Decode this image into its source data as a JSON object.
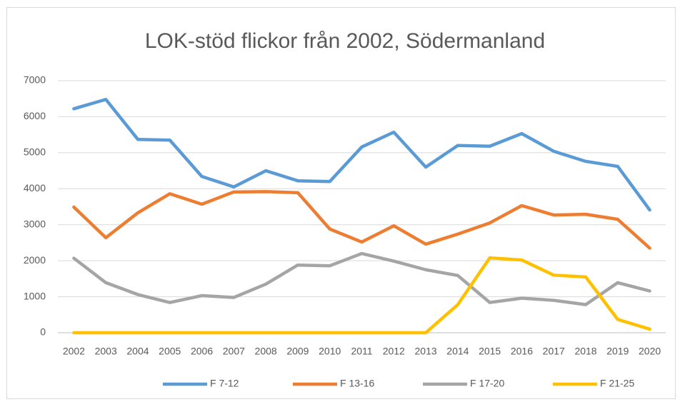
{
  "chart_data": {
    "type": "line",
    "title": "LOK-stöd flickor från 2002, Södermanland",
    "categories": [
      "2002",
      "2003",
      "2004",
      "2005",
      "2006",
      "2007",
      "2008",
      "2009",
      "2010",
      "2011",
      "2012",
      "2013",
      "2014",
      "2015",
      "2016",
      "2017",
      "2018",
      "2019",
      "2020"
    ],
    "series": [
      {
        "name": "F 7-12",
        "color": "#5b9bd5",
        "values": [
          6220,
          6480,
          5370,
          5350,
          4340,
          4050,
          4500,
          4220,
          4200,
          5160,
          5570,
          4600,
          5200,
          5180,
          5530,
          5040,
          4760,
          4620,
          3410
        ]
      },
      {
        "name": "F 13-16",
        "color": "#ed7d31",
        "values": [
          3490,
          2640,
          3330,
          3860,
          3570,
          3910,
          3920,
          3890,
          2880,
          2520,
          2970,
          2460,
          2740,
          3050,
          3530,
          3270,
          3290,
          3150,
          2350
        ]
      },
      {
        "name": "F 17-20",
        "color": "#a5a5a5",
        "values": [
          2070,
          1390,
          1060,
          840,
          1030,
          980,
          1350,
          1880,
          1860,
          2200,
          1990,
          1750,
          1590,
          840,
          960,
          900,
          780,
          1390,
          1160
        ]
      },
      {
        "name": "F 21-25",
        "color": "#ffc000",
        "values": [
          0,
          0,
          0,
          0,
          0,
          0,
          0,
          0,
          0,
          0,
          0,
          0,
          780,
          2080,
          2020,
          1600,
          1550,
          370,
          100
        ]
      }
    ],
    "ylim": [
      0,
      7000
    ],
    "yticks": [
      0,
      1000,
      2000,
      3000,
      4000,
      5000,
      6000,
      7000
    ],
    "grid": true,
    "legend": "bottom"
  }
}
